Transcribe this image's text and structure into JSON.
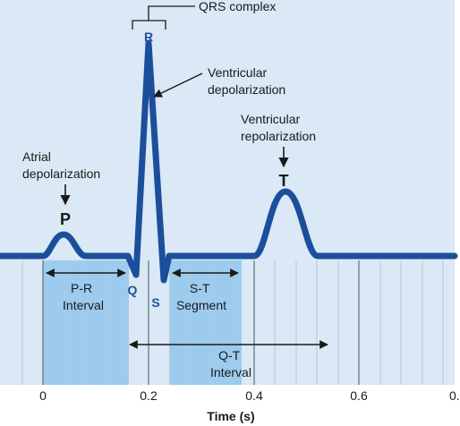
{
  "labels": {
    "qrs_complex": "QRS complex",
    "r": "R",
    "q": "Q",
    "s": "S",
    "p": "P",
    "t": "T",
    "ventricular_depolarization": [
      "Ventricular",
      "depolarization"
    ],
    "ventricular_repolarization": [
      "Ventricular",
      "repolarization"
    ],
    "atrial_depolarization": [
      "Atrial",
      "depolarization"
    ],
    "pr_interval": [
      "P-R",
      "Interval"
    ],
    "st_segment": [
      "S-T",
      "Segment"
    ],
    "qt_interval": [
      "Q-T",
      "Interval"
    ]
  },
  "axis": {
    "title": "Time (s)",
    "ticks": [
      "0",
      "0.2",
      "0.4",
      "0.6",
      "0."
    ]
  },
  "colors": {
    "background": "#dbe8f5",
    "band": "#9ccbee",
    "trace": "#1b4f9b",
    "grid": "#b5c8da"
  }
}
